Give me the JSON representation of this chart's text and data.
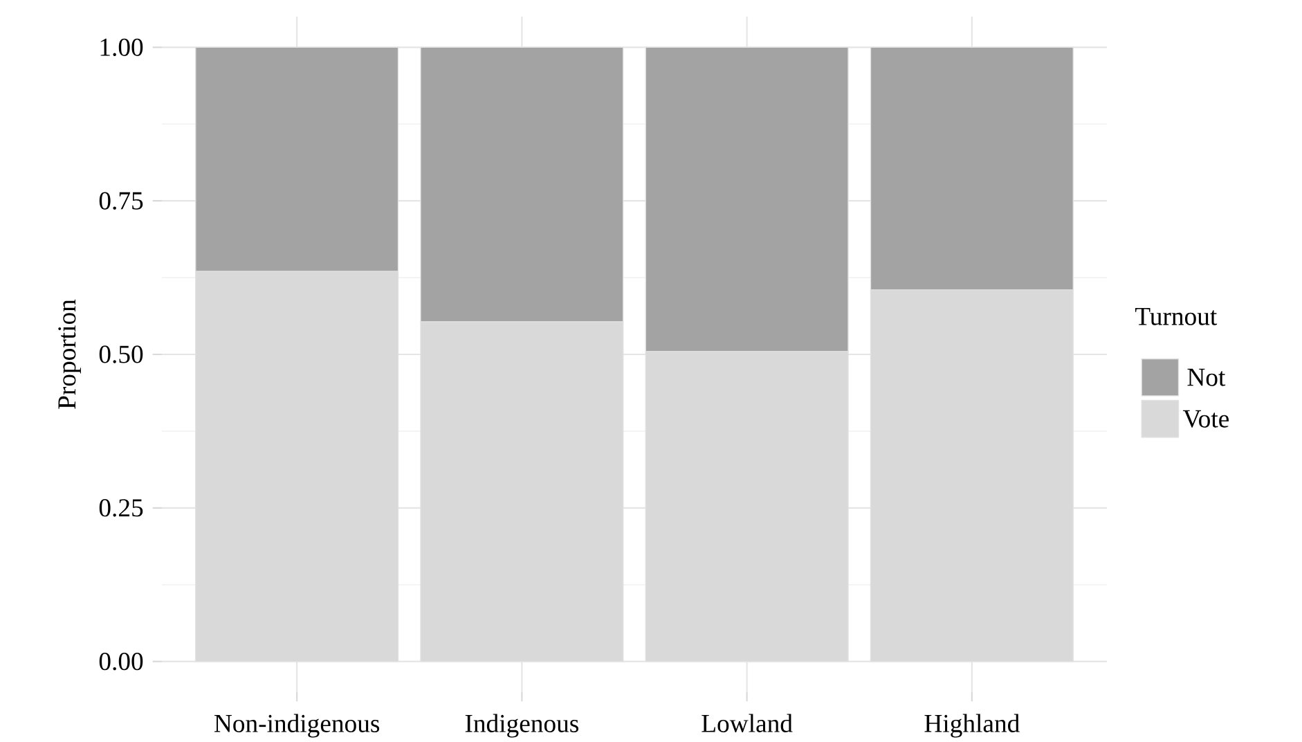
{
  "chart_data": {
    "type": "bar",
    "stacked": true,
    "ylabel": "Proportion",
    "legend_title": "Turnout",
    "legend": "right",
    "grid": true,
    "categories": [
      "Non-indigenous",
      "Indigenous",
      "Lowland",
      "Highland"
    ],
    "series": [
      {
        "name": "Vote",
        "color": "#d9d9d9",
        "values": [
          0.635,
          0.553,
          0.505,
          0.605
        ]
      },
      {
        "name": "Not",
        "color": "#a3a3a3",
        "values": [
          0.365,
          0.447,
          0.495,
          0.395
        ]
      }
    ],
    "ylim": [
      -0.05,
      1.05
    ],
    "yticks": [
      {
        "value": 0,
        "label": "0.00"
      },
      {
        "value": 0.25,
        "label": "0.25"
      },
      {
        "value": 0.5,
        "label": "0.50"
      },
      {
        "value": 0.75,
        "label": "0.75"
      },
      {
        "value": 1,
        "label": "1.00"
      }
    ]
  }
}
